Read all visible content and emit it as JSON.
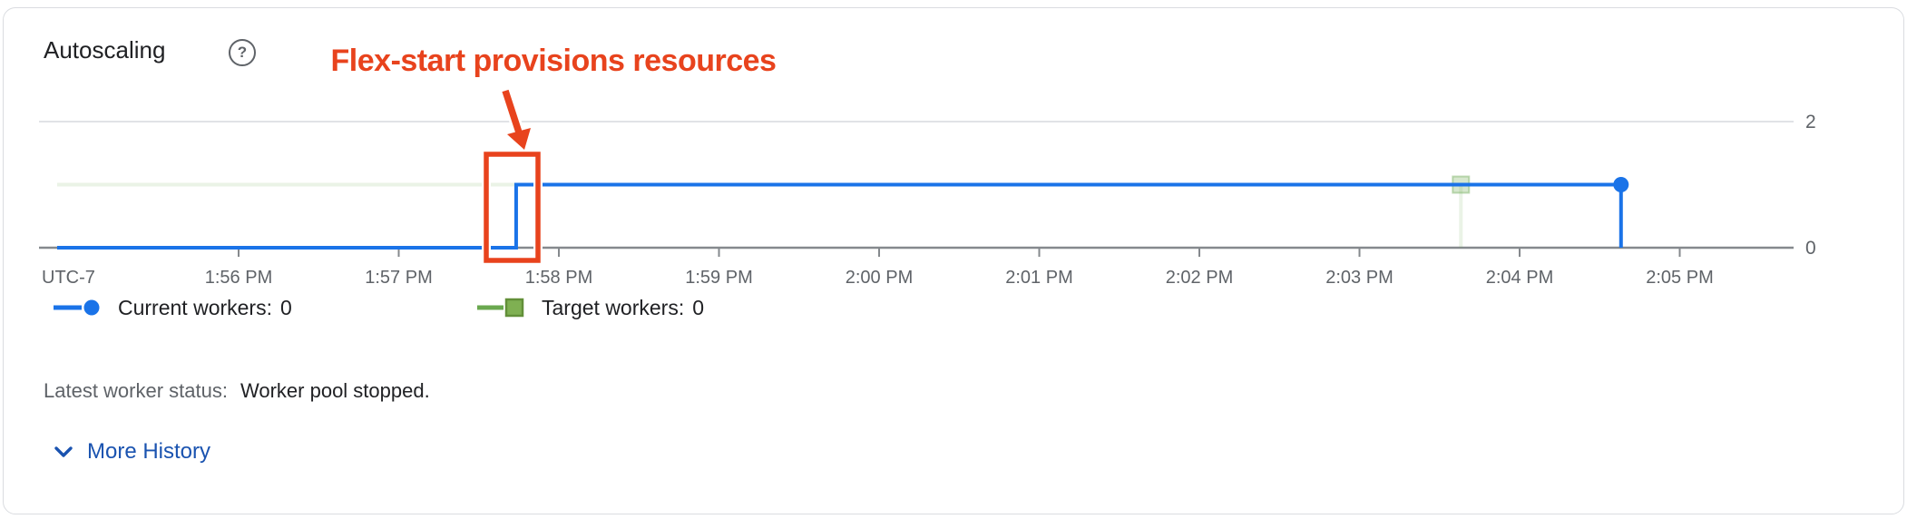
{
  "header": {
    "title": "Autoscaling",
    "help_icon_glyph": "?"
  },
  "annotation": {
    "label": "Flex-start provisions resources",
    "color": "#e8431d"
  },
  "colors": {
    "current_workers_series": "#1a73e8",
    "target_workers_series": "#6aa84f",
    "annotation_red": "#e8431d",
    "link_blue": "#1a53b0",
    "axis_grey": "#85898d",
    "gridline_grey": "#e1e3e6",
    "label_grey": "#5f6368"
  },
  "chart_data": {
    "type": "line",
    "title": "Autoscaling",
    "x_axis": {
      "timezone_label": "UTC-7",
      "tick_labels": [
        "1:56 PM",
        "1:57 PM",
        "1:58 PM",
        "1:59 PM",
        "2:00 PM",
        "2:01 PM",
        "2:02 PM",
        "2:03 PM",
        "2:04 PM",
        "2:05 PM"
      ]
    },
    "y_axis": {
      "tick_labels": [
        "0",
        "2"
      ],
      "tick_values": [
        0,
        2
      ],
      "range": [
        0,
        2
      ],
      "gridline_values": [
        2
      ]
    },
    "legend_position": "bottom",
    "series": [
      {
        "name": "Current workers",
        "legend_label": "Current workers:",
        "legend_value": "0",
        "color": "#1a73e8",
        "marker": "circle",
        "line_opacity": 1,
        "points": [
          [
            "1:54:52",
            0
          ],
          [
            "1:57:44",
            0
          ],
          [
            "1:57:44",
            1
          ],
          [
            "2:04:38",
            1
          ],
          [
            "2:04:38",
            0
          ]
        ],
        "end_marker": {
          "time": "2:04:38",
          "value": 1
        }
      },
      {
        "name": "Target workers",
        "legend_label": "Target workers:",
        "legend_value": "0",
        "color": "#6aa84f",
        "marker": "square",
        "line_opacity": 0.14,
        "points": [
          [
            "1:54:52",
            1
          ],
          [
            "2:03:38",
            1
          ],
          [
            "2:03:38",
            0
          ]
        ],
        "end_marker": {
          "time": "2:03:38",
          "value": 1
        }
      }
    ]
  },
  "status": {
    "label": "Latest worker status:",
    "value": "Worker pool stopped."
  },
  "more_history": {
    "label": "More History"
  }
}
